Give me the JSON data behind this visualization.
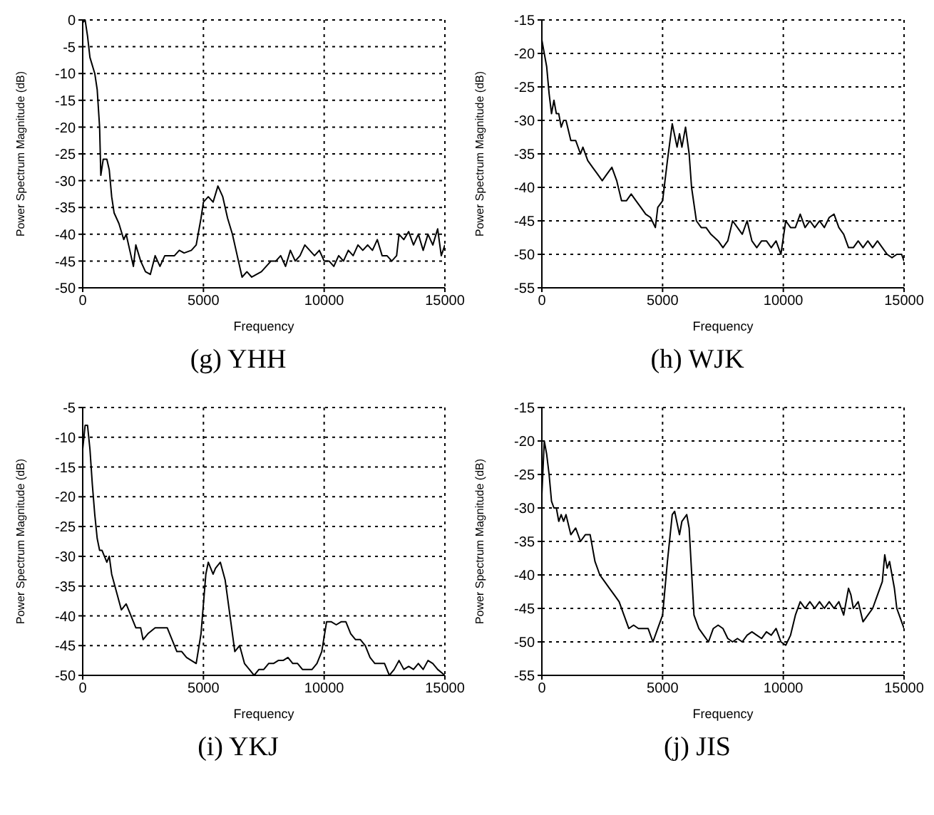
{
  "chart_data": [
    {
      "type": "line",
      "title": "(g)  YHH",
      "xlabel": "Frequency",
      "ylabel": "Power Spectrum Magnitude (dB)",
      "color": "#000000",
      "grid": true,
      "xlim": [
        0,
        15000
      ],
      "xticks": [
        0,
        5000,
        10000,
        15000
      ],
      "ylim": [
        -50,
        0
      ],
      "yticks": [
        -50,
        -45,
        -40,
        -35,
        -30,
        -25,
        -20,
        -15,
        -10,
        -5,
        0
      ],
      "x": [
        0,
        100,
        200,
        300,
        500,
        600,
        700,
        750,
        850,
        1000,
        1100,
        1200,
        1300,
        1500,
        1700,
        1800,
        2000,
        2100,
        2200,
        2400,
        2600,
        2800,
        3000,
        3200,
        3400,
        3600,
        3800,
        4000,
        4200,
        4500,
        4700,
        4900,
        5000,
        5200,
        5400,
        5600,
        5800,
        6000,
        6200,
        6400,
        6600,
        6800,
        7000,
        7200,
        7400,
        7600,
        7800,
        8000,
        8200,
        8400,
        8600,
        8800,
        9000,
        9200,
        9400,
        9600,
        9800,
        10000,
        10200,
        10400,
        10600,
        10800,
        11000,
        11200,
        11400,
        11600,
        11800,
        12000,
        12200,
        12400,
        12600,
        12800,
        13000,
        13100,
        13300,
        13500,
        13700,
        13900,
        14100,
        14300,
        14500,
        14700,
        14850,
        15000
      ],
      "values": [
        -0.5,
        0,
        -3,
        -7,
        -10,
        -13,
        -20,
        -29,
        -26,
        -26,
        -28,
        -33,
        -36,
        -38,
        -41,
        -40,
        -44,
        -46,
        -42,
        -45,
        -47,
        -47.5,
        -44,
        -46,
        -44,
        -44,
        -44,
        -43,
        -43.5,
        -43,
        -42,
        -37,
        -34,
        -33,
        -34,
        -31,
        -33,
        -37,
        -40,
        -44,
        -48,
        -47,
        -48,
        -47.5,
        -47,
        -46,
        -45,
        -45,
        -44,
        -46,
        -43,
        -45,
        -44,
        -42,
        -43,
        -44,
        -43,
        -45,
        -45,
        -46,
        -44,
        -45,
        -43,
        -44,
        -42,
        -43,
        -42,
        -43,
        -41,
        -44,
        -44,
        -45,
        -44,
        -40,
        -41,
        -39.5,
        -42,
        -40,
        -43,
        -40,
        -42,
        -39,
        -44,
        -42
      ]
    },
    {
      "type": "line",
      "title": "(h)  WJK",
      "xlabel": "Frequency",
      "ylabel": "Power Spectrum Magnitude (dB)",
      "color": "#000000",
      "grid": true,
      "xlim": [
        0,
        15000
      ],
      "xticks": [
        0,
        5000,
        10000,
        15000
      ],
      "ylim": [
        -55,
        -15
      ],
      "yticks": [
        -55,
        -50,
        -45,
        -40,
        -35,
        -30,
        -25,
        -20,
        -15
      ],
      "x": [
        0,
        100,
        200,
        300,
        400,
        500,
        600,
        700,
        800,
        900,
        1000,
        1200,
        1400,
        1600,
        1700,
        1900,
        2100,
        2300,
        2500,
        2700,
        2900,
        3100,
        3300,
        3500,
        3700,
        3900,
        4100,
        4300,
        4500,
        4700,
        4800,
        5000,
        5200,
        5400,
        5600,
        5700,
        5800,
        5950,
        6100,
        6200,
        6400,
        6600,
        6800,
        7000,
        7300,
        7500,
        7700,
        7900,
        8100,
        8300,
        8500,
        8700,
        8900,
        9100,
        9300,
        9500,
        9700,
        9900,
        10100,
        10300,
        10500,
        10700,
        10900,
        11100,
        11300,
        11500,
        11700,
        11900,
        12100,
        12300,
        12500,
        12700,
        12900,
        13100,
        13300,
        13500,
        13700,
        13900,
        14100,
        14300,
        14500,
        14700,
        14900,
        15000
      ],
      "values": [
        -18,
        -20,
        -22,
        -26,
        -29,
        -27,
        -29,
        -29,
        -31,
        -30,
        -30,
        -33,
        -33,
        -35,
        -34,
        -36,
        -37,
        -38,
        -39,
        -38,
        -37,
        -39,
        -42,
        -42,
        -41,
        -42,
        -43,
        -44,
        -44.5,
        -46,
        -43,
        -42,
        -36,
        -30.5,
        -34,
        -32,
        -34,
        -31,
        -35,
        -40,
        -45,
        -46,
        -46,
        -47,
        -48,
        -49,
        -48,
        -45,
        -46,
        -47,
        -45,
        -48,
        -49,
        -48,
        -48,
        -49,
        -48,
        -50,
        -45,
        -46,
        -46,
        -44,
        -46,
        -45,
        -46,
        -45,
        -46,
        -44.5,
        -44,
        -46,
        -47,
        -49,
        -49,
        -48,
        -49,
        -48,
        -49,
        -48,
        -49,
        -50,
        -50.5,
        -50,
        -50,
        -51
      ]
    },
    {
      "type": "line",
      "title": "(i)  YKJ",
      "xlabel": "Frequency",
      "ylabel": "Power Spectrum Magnitude (dB)",
      "color": "#000000",
      "grid": true,
      "xlim": [
        0,
        15000
      ],
      "xticks": [
        0,
        5000,
        10000,
        15000
      ],
      "ylim": [
        -50,
        -5
      ],
      "yticks": [
        -50,
        -45,
        -40,
        -35,
        -30,
        -25,
        -20,
        -15,
        -10,
        -5
      ],
      "x": [
        0,
        100,
        200,
        300,
        400,
        500,
        600,
        700,
        800,
        900,
        1000,
        1100,
        1200,
        1400,
        1600,
        1800,
        2000,
        2200,
        2400,
        2500,
        2700,
        3000,
        3200,
        3500,
        3700,
        3900,
        4100,
        4300,
        4500,
        4700,
        4900,
        5100,
        5200,
        5400,
        5500,
        5700,
        5900,
        6100,
        6300,
        6500,
        6700,
        6900,
        7100,
        7300,
        7500,
        7700,
        7900,
        8100,
        8300,
        8500,
        8700,
        8900,
        9100,
        9300,
        9500,
        9700,
        9900,
        10100,
        10300,
        10500,
        10700,
        10900,
        11100,
        11300,
        11500,
        11700,
        11900,
        12100,
        12300,
        12500,
        12700,
        12900,
        13100,
        13300,
        13500,
        13700,
        13900,
        14100,
        14300,
        14500,
        14700,
        15000
      ],
      "values": [
        -12,
        -8,
        -8,
        -12,
        -18,
        -23,
        -27,
        -29,
        -29,
        -30,
        -31,
        -30,
        -33,
        -36,
        -39,
        -38,
        -40,
        -42,
        -42,
        -44,
        -43,
        -42,
        -42,
        -42,
        -44,
        -46,
        -46,
        -47,
        -47.5,
        -48,
        -43,
        -33,
        -31,
        -33,
        -32,
        -31,
        -34,
        -40,
        -46,
        -45,
        -48,
        -49,
        -50,
        -49,
        -49,
        -48,
        -48,
        -47.5,
        -47.5,
        -47,
        -48,
        -48,
        -49,
        -49,
        -49,
        -48,
        -46,
        -41,
        -41,
        -41.5,
        -41,
        -41,
        -43,
        -44,
        -44,
        -45,
        -47,
        -48,
        -48,
        -48,
        -50,
        -49,
        -47.5,
        -49,
        -48.5,
        -49,
        -48,
        -49,
        -47.5,
        -48,
        -49,
        -50
      ]
    },
    {
      "type": "line",
      "title": "(j)  JIS",
      "xlabel": "Frequency",
      "ylabel": "Power Spectrum Magnitude (dB)",
      "color": "#000000",
      "grid": true,
      "xlim": [
        0,
        15000
      ],
      "xticks": [
        0,
        5000,
        10000,
        15000
      ],
      "ylim": [
        -55,
        -15
      ],
      "yticks": [
        -55,
        -50,
        -45,
        -40,
        -35,
        -30,
        -25,
        -20,
        -15
      ],
      "x": [
        0,
        100,
        200,
        300,
        400,
        500,
        600,
        700,
        800,
        900,
        1000,
        1200,
        1400,
        1600,
        1800,
        2000,
        2200,
        2400,
        2600,
        2800,
        3000,
        3200,
        3400,
        3600,
        3800,
        4000,
        4200,
        4400,
        4600,
        4800,
        5000,
        5200,
        5400,
        5500,
        5700,
        5800,
        6000,
        6100,
        6300,
        6500,
        6700,
        6900,
        7100,
        7300,
        7500,
        7700,
        7900,
        8100,
        8300,
        8500,
        8700,
        8900,
        9100,
        9300,
        9500,
        9700,
        9900,
        10100,
        10300,
        10500,
        10700,
        10900,
        11100,
        11300,
        11500,
        11700,
        11900,
        12100,
        12300,
        12500,
        12700,
        12800,
        12900,
        13100,
        13300,
        13500,
        13700,
        13900,
        14100,
        14200,
        14300,
        14400,
        14600,
        14700,
        14800,
        14900,
        15000
      ],
      "values": [
        -28,
        -20,
        -22,
        -25,
        -29,
        -30,
        -30,
        -32,
        -31,
        -32,
        -31,
        -34,
        -33,
        -35,
        -34,
        -34,
        -38,
        -40,
        -41,
        -42,
        -43,
        -44,
        -46,
        -48,
        -47.5,
        -48,
        -48,
        -48,
        -50,
        -48,
        -46,
        -38,
        -31,
        -30.5,
        -34,
        -32,
        -31,
        -33,
        -46,
        -48,
        -49,
        -50,
        -48,
        -47.5,
        -48,
        -49.5,
        -50,
        -49.5,
        -50,
        -49,
        -48.5,
        -49,
        -49.5,
        -48.5,
        -49,
        -48,
        -50,
        -50.5,
        -49,
        -46,
        -44,
        -45,
        -44,
        -45,
        -44,
        -45,
        -44,
        -45,
        -44,
        -46,
        -42,
        -43,
        -45,
        -44,
        -47,
        -46,
        -45,
        -43,
        -41,
        -37,
        -39,
        -38,
        -42,
        -45,
        -46,
        -47,
        -48
      ]
    }
  ]
}
